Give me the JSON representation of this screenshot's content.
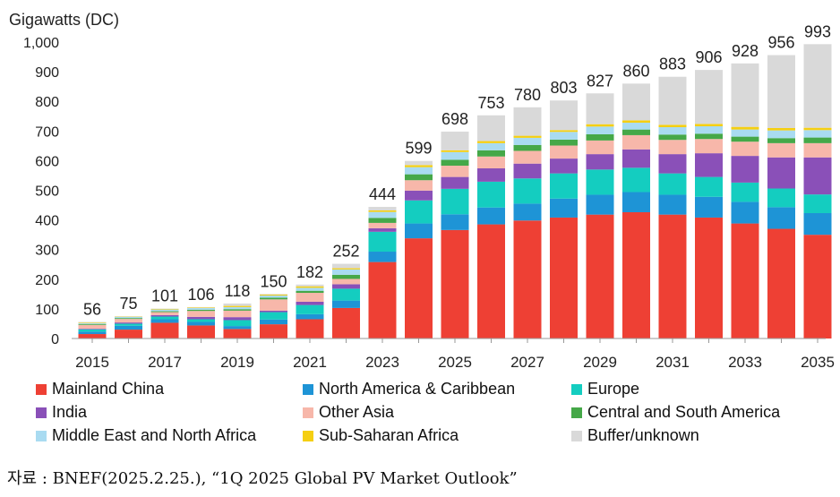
{
  "chart_data": {
    "type": "bar",
    "stacked": true,
    "ylabel": "Gigawatts (DC)",
    "ylim": [
      0,
      1000
    ],
    "yticks": [
      "0",
      "100",
      "200",
      "300",
      "400",
      "500",
      "600",
      "700",
      "800",
      "900",
      "1,000"
    ],
    "categories": [
      "2015",
      "2016",
      "2017",
      "2018",
      "2019",
      "2020",
      "2021",
      "2022",
      "2023",
      "2024",
      "2025",
      "2026",
      "2027",
      "2028",
      "2029",
      "2030",
      "2031",
      "2032",
      "2033",
      "2034",
      "2035"
    ],
    "xtick_labels": [
      "2015",
      "2017",
      "2019",
      "2021",
      "2023",
      "2025",
      "2027",
      "2029",
      "2031",
      "2033",
      "2035"
    ],
    "totals": [
      56,
      75,
      101,
      106,
      118,
      150,
      182,
      252,
      444,
      599,
      698,
      753,
      780,
      803,
      827,
      860,
      883,
      906,
      928,
      956,
      993
    ],
    "series": [
      {
        "name": "Mainland China",
        "color": "#ee4034",
        "values": [
          15,
          30,
          53,
          44,
          32,
          48,
          65,
          103,
          258,
          338,
          366,
          385,
          398,
          408,
          418,
          426,
          418,
          408,
          388,
          370,
          350
        ]
      },
      {
        "name": "North America & Caribbean",
        "color": "#1e94d6",
        "values": [
          8,
          13,
          12,
          12,
          10,
          16,
          17,
          25,
          35,
          50,
          53,
          57,
          57,
          64,
          67,
          68,
          67,
          70,
          73,
          73,
          73
        ]
      },
      {
        "name": "Europe",
        "color": "#14cdc0",
        "values": [
          8,
          7,
          9,
          9,
          20,
          25,
          31,
          40,
          67,
          78,
          86,
          87,
          85,
          85,
          85,
          82,
          72,
          67,
          65,
          63,
          63
        ]
      },
      {
        "name": "India",
        "color": "#8a50b8",
        "values": [
          2,
          4,
          5,
          8,
          10,
          5,
          11,
          15,
          12,
          33,
          40,
          45,
          50,
          50,
          52,
          62,
          65,
          80,
          90,
          105,
          125
        ]
      },
      {
        "name": "Other Asia",
        "color": "#f7b7aa",
        "values": [
          13,
          12,
          10,
          20,
          22,
          38,
          30,
          18,
          18,
          35,
          38,
          40,
          43,
          44,
          46,
          48,
          48,
          48,
          48,
          48,
          48
        ]
      },
      {
        "name": "Central and South America",
        "color": "#45a848",
        "values": [
          3,
          3,
          3,
          4,
          5,
          6,
          7,
          14,
          17,
          20,
          20,
          21,
          20,
          20,
          21,
          19,
          18,
          18,
          17,
          17,
          19
        ]
      },
      {
        "name": "Middle East and North Africa",
        "color": "#a9dbf1",
        "values": [
          3,
          4,
          6,
          6,
          7,
          7,
          10,
          18,
          20,
          24,
          26,
          24,
          24,
          26,
          26,
          23,
          25,
          25,
          24,
          26,
          25
        ]
      },
      {
        "name": "Sub-Saharan Africa",
        "color": "#f5cf12",
        "values": [
          2,
          1,
          2,
          2,
          4,
          3,
          5,
          4,
          5,
          7,
          6,
          7,
          7,
          6,
          8,
          8,
          8,
          8,
          9,
          8,
          8
        ]
      },
      {
        "name": "Buffer/unknown",
        "color": "#d9d9d9",
        "values": [
          2,
          1,
          1,
          1,
          8,
          2,
          6,
          15,
          12,
          14,
          63,
          87,
          96,
          100,
          104,
          124,
          162,
          182,
          214,
          246,
          282
        ]
      }
    ]
  },
  "source": "자료 : BNEF(2025.2.25.), “1Q 2025 Global PV Market Outlook”"
}
